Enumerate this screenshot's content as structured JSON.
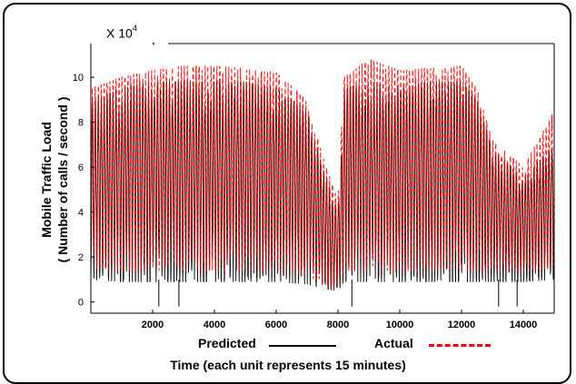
{
  "chart_data": {
    "type": "line",
    "multiplier": "X 10",
    "multiplier_exp": "4",
    "ylabel_line1": "Mobile Traffic Load",
    "ylabel_line2": "( Number of calls / second )",
    "xlabel": "Time (each unit represents 15 minutes)",
    "xlim": [
      0,
      15000
    ],
    "ylim": [
      -0.5,
      11.5
    ],
    "x_ticks": [
      2000,
      4000,
      6000,
      8000,
      10000,
      12000,
      14000
    ],
    "x_tick_labels": [
      "2000",
      "4000",
      "6000",
      "8000",
      "10000",
      "12000",
      "14000"
    ],
    "y_ticks": [
      0,
      2,
      4,
      6,
      8,
      10
    ],
    "y_tick_labels": [
      "0",
      "2",
      "4",
      "6",
      "8",
      "10"
    ],
    "series": [
      {
        "name": "Predicted",
        "color": "#000000",
        "style": "solid",
        "x": [
          0,
          1000,
          2000,
          3000,
          4000,
          5000,
          6000,
          7000,
          7500,
          8000,
          8200,
          9000,
          10000,
          11000,
          12000,
          12500,
          13000,
          14000,
          15000
        ],
        "y_max": [
          9.0,
          9.5,
          9.8,
          9.8,
          9.8,
          9.8,
          9.5,
          8.5,
          6.0,
          4.0,
          9.5,
          9.8,
          9.5,
          9.8,
          9.8,
          9.0,
          6.8,
          5.5,
          7.0
        ],
        "y_min": [
          1.0,
          0.9,
          0.9,
          0.9,
          0.9,
          0.9,
          0.9,
          0.8,
          0.6,
          0.5,
          0.9,
          0.9,
          0.9,
          0.9,
          0.9,
          0.9,
          0.9,
          0.9,
          1.0
        ]
      },
      {
        "name": "Actual",
        "color": "#ff0000",
        "style": "dashed",
        "x": [
          0,
          1000,
          2000,
          3000,
          4000,
          5000,
          6000,
          7000,
          7500,
          8000,
          8200,
          9000,
          10000,
          11000,
          12000,
          12500,
          13000,
          14000,
          15000
        ],
        "y_max": [
          9.5,
          10.0,
          10.3,
          10.5,
          10.5,
          10.4,
          10.2,
          9.0,
          6.5,
          4.5,
          10.0,
          10.8,
          10.3,
          10.4,
          10.5,
          9.5,
          7.2,
          6.0,
          8.5
        ],
        "y_min": [
          1.5,
          1.4,
          1.4,
          1.4,
          1.4,
          1.4,
          1.3,
          1.2,
          0.8,
          0.5,
          1.4,
          1.4,
          1.4,
          1.4,
          1.4,
          1.4,
          1.4,
          1.4,
          1.5
        ]
      }
    ],
    "notes_outliers": [
      {
        "x": 2200,
        "y": -0.2
      },
      {
        "x": 2850,
        "y": -0.2
      },
      {
        "x": 8450,
        "y": -0.2
      },
      {
        "x": 13200,
        "y": -0.2
      },
      {
        "x": 13800,
        "y": -0.2
      }
    ]
  },
  "legend": {
    "predicted_label": "Predicted",
    "actual_label": "Actual"
  }
}
